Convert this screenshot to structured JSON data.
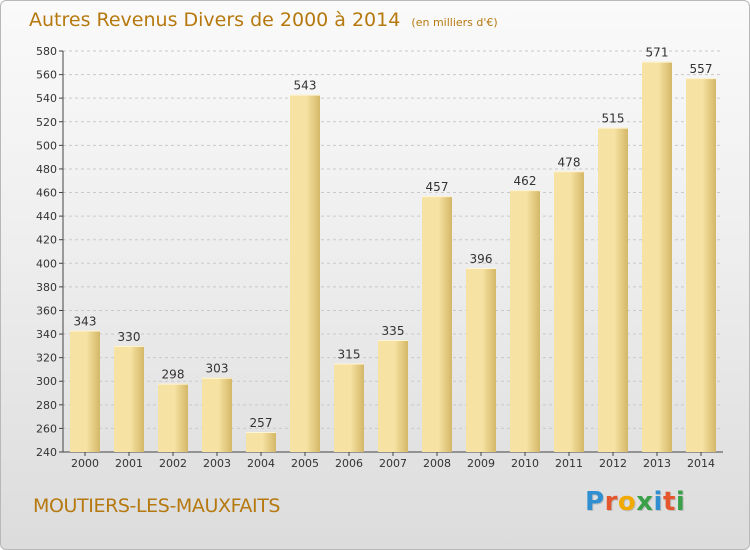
{
  "header": {
    "title": "Autres Revenus Divers de 2000 à 2014",
    "subtitle": "(en milliers d'€)"
  },
  "footer": {
    "commune": "MOUTIERS-LES-MAUXFAITS",
    "logo": {
      "letters": [
        "P",
        "r",
        "o",
        "x",
        "i",
        "t",
        "i"
      ],
      "colors": [
        "#2f8fd0",
        "#e4572e",
        "#f2a900",
        "#3aa04a",
        "#2f8fd0",
        "#e4572e",
        "#3aa04a"
      ]
    }
  },
  "colors": {
    "title": "#b6790f",
    "bar_light": "#f6e2a2",
    "bar_dark": "#d4b768",
    "grid": "#c9c9c9",
    "axis": "#444444"
  },
  "chart_data": {
    "type": "bar",
    "categories": [
      "2000",
      "2001",
      "2002",
      "2003",
      "2004",
      "2005",
      "2006",
      "2007",
      "2008",
      "2009",
      "2010",
      "2011",
      "2012",
      "2013",
      "2014"
    ],
    "values": [
      343,
      330,
      298,
      303,
      257,
      543,
      315,
      335,
      457,
      396,
      462,
      478,
      515,
      571,
      557
    ],
    "ylim": [
      240,
      580
    ],
    "yticks": [
      240,
      260,
      280,
      300,
      320,
      340,
      360,
      380,
      400,
      420,
      440,
      460,
      480,
      500,
      520,
      540,
      560,
      580
    ],
    "grid": true,
    "legend": "none"
  }
}
